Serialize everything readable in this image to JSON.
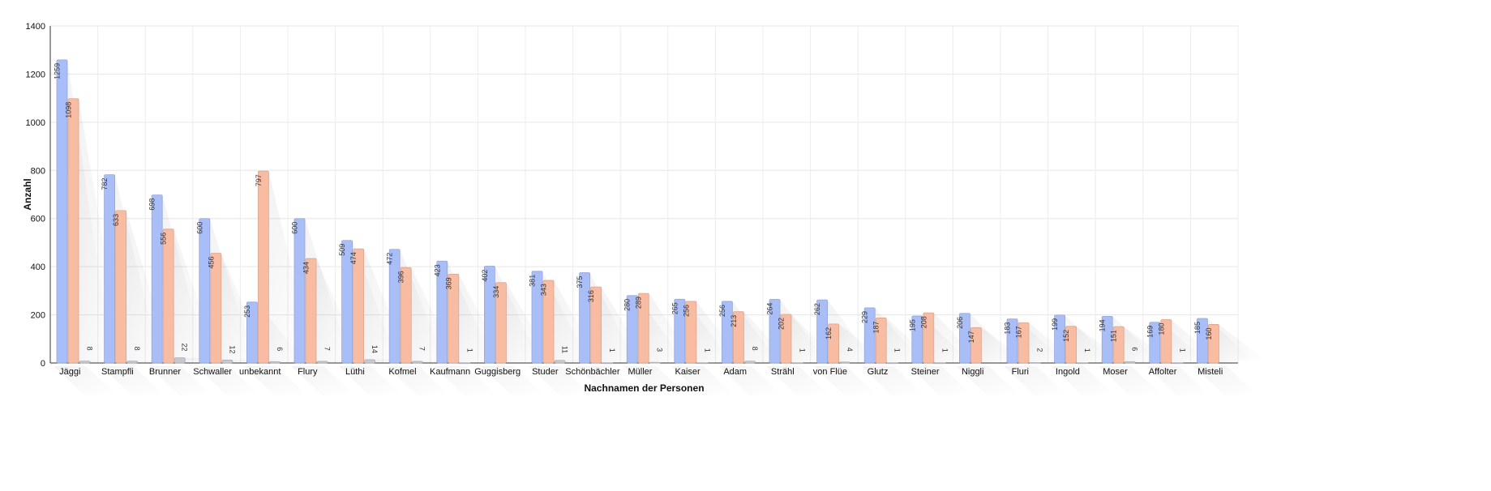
{
  "chart_data": {
    "type": "bar",
    "xlabel": "Nachnamen der Personen",
    "ylabel": "Anzahl",
    "ylim": [
      0,
      1400
    ],
    "yticks": [
      0,
      200,
      400,
      600,
      800,
      1000,
      1200,
      1400
    ],
    "grid": true,
    "categories": [
      "Jäggi",
      "Stampfli",
      "Brunner",
      "Schwaller",
      "unbekannt",
      "Flury",
      "Lüthi",
      "Kofmel",
      "Kaufmann",
      "Guggisberg",
      "Studer",
      "Schönbächler",
      "Müller",
      "Kaiser",
      "Adam",
      "Strähl",
      "von Flüe",
      "Glutz",
      "Steiner",
      "Niggli",
      "Fluri",
      "Ingold",
      "Moser",
      "Affolter",
      "Misteli"
    ],
    "series": [
      {
        "color": "#a9bdf7",
        "values": [
          1259,
          782,
          698,
          600,
          253,
          600,
          509,
          472,
          423,
          402,
          381,
          375,
          280,
          265,
          256,
          264,
          262,
          229,
          195,
          206,
          183,
          199,
          194,
          169,
          185
        ]
      },
      {
        "color": "#f8bca3",
        "values": [
          1098,
          633,
          556,
          456,
          797,
          434,
          474,
          396,
          369,
          334,
          343,
          316,
          289,
          256,
          213,
          202,
          162,
          187,
          208,
          147,
          167,
          152,
          151,
          180,
          160
        ]
      },
      {
        "color": "#c7c7cf",
        "values": [
          8,
          8,
          22,
          12,
          6,
          7,
          14,
          7,
          1,
          null,
          11,
          1,
          3,
          1,
          8,
          1,
          4,
          1,
          1,
          null,
          2,
          1,
          6,
          1,
          null
        ]
      }
    ]
  }
}
